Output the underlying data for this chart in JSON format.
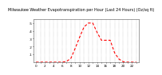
{
  "title": "Milwaukee Weather Evapotranspiration per Hour (Last 24 Hours) (Oz/sq ft)",
  "hours": [
    0,
    1,
    2,
    3,
    4,
    5,
    6,
    7,
    8,
    9,
    10,
    11,
    12,
    13,
    14,
    15,
    16,
    17,
    18,
    19,
    20,
    21,
    22,
    23
  ],
  "values": [
    0,
    0,
    0,
    0,
    0,
    0,
    0,
    0.01,
    0.05,
    0.18,
    0.32,
    0.45,
    0.5,
    0.5,
    0.38,
    0.28,
    0.28,
    0.28,
    0.12,
    0.04,
    0.005,
    0,
    0,
    0
  ],
  "line_color": "#ff0000",
  "line_style": "--",
  "line_width": 0.8,
  "background_color": "#ffffff",
  "grid_color": "#888888",
  "ylim": [
    0,
    0.55
  ],
  "yticks": [
    0.1,
    0.2,
    0.3,
    0.4,
    0.5
  ],
  "ytick_labels": [
    ".1",
    ".2",
    ".3",
    ".4",
    ".5"
  ],
  "tick_fontsize": 3,
  "title_fontsize": 3.5
}
